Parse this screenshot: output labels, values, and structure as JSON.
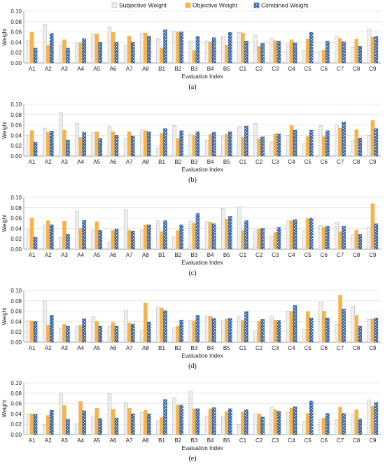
{
  "legend": {
    "subjective": "Subjective Weight",
    "objective": "Objective Weight",
    "combined": "Combined Weight"
  },
  "colors": {
    "subjective": "#c9c9c9",
    "objective": "#f7b24a",
    "combined": "#2f5fa7",
    "grid": "#e3e3e3",
    "axis": "#888888"
  },
  "chart_data": [
    {
      "type": "bar",
      "panel_label": "(a)",
      "categories": [
        "A1",
        "A2",
        "A3",
        "A4",
        "A5",
        "A6",
        "A7",
        "A8",
        "B1",
        "B2",
        "B3",
        "B4",
        "B5",
        "C1",
        "C2",
        "C3",
        "C4",
        "C5",
        "C6",
        "C7",
        "C8",
        "C9"
      ],
      "series": [
        {
          "name": "Subjective Weight",
          "values": [
            0.044,
            0.075,
            0.035,
            0.038,
            0.057,
            0.07,
            0.035,
            0.058,
            0.048,
            0.062,
            0.043,
            0.043,
            0.051,
            0.059,
            0.054,
            0.048,
            0.037,
            0.024,
            0.022,
            0.052,
            0.031,
            0.066
          ]
        },
        {
          "name": "Objective Weight",
          "values": [
            0.059,
            0.034,
            0.045,
            0.039,
            0.056,
            0.059,
            0.052,
            0.058,
            0.029,
            0.06,
            0.024,
            0.041,
            0.035,
            0.058,
            0.032,
            0.043,
            0.045,
            0.046,
            0.025,
            0.047,
            0.046,
            0.05
          ]
        },
        {
          "name": "Combined Weight",
          "values": [
            0.029,
            0.057,
            0.029,
            0.047,
            0.04,
            0.04,
            0.04,
            0.052,
            0.064,
            0.06,
            0.051,
            0.049,
            0.059,
            0.042,
            0.038,
            0.042,
            0.039,
            0.059,
            0.042,
            0.041,
            0.032,
            0.051
          ]
        }
      ],
      "xlabel": "Evaluation Index",
      "ylabel": "Weight",
      "ylim": [
        0,
        0.1
      ],
      "yticks": [
        "0.00",
        "0.02",
        "0.04",
        "0.06",
        "0.08",
        "0.10"
      ],
      "legend_position": "top-center",
      "grid": true
    },
    {
      "type": "bar",
      "panel_label": "(b)",
      "categories": [
        "A1",
        "A2",
        "A3",
        "A4",
        "A5",
        "A6",
        "A7",
        "A8",
        "B1",
        "B2",
        "B3",
        "B4",
        "B5",
        "C1",
        "C2",
        "C3",
        "C4",
        "C5",
        "C6",
        "C7",
        "C8",
        "C9"
      ],
      "series": [
        {
          "name": "Subjective Weight",
          "values": [
            0.041,
            0.054,
            0.084,
            0.063,
            0.045,
            0.057,
            0.034,
            0.051,
            0.016,
            0.059,
            0.043,
            0.031,
            0.039,
            0.057,
            0.063,
            0.027,
            0.04,
            0.024,
            0.059,
            0.06,
            0.03,
            0.04
          ]
        },
        {
          "name": "Objective Weight",
          "values": [
            0.049,
            0.046,
            0.05,
            0.036,
            0.047,
            0.047,
            0.047,
            0.049,
            0.044,
            0.034,
            0.04,
            0.042,
            0.043,
            0.036,
            0.034,
            0.043,
            0.059,
            0.038,
            0.038,
            0.054,
            0.051,
            0.069
          ]
        },
        {
          "name": "Combined Weight",
          "values": [
            0.027,
            0.048,
            0.031,
            0.046,
            0.034,
            0.04,
            0.039,
            0.047,
            0.053,
            0.049,
            0.047,
            0.046,
            0.047,
            0.058,
            0.037,
            0.043,
            0.05,
            0.05,
            0.049,
            0.066,
            0.035,
            0.053
          ]
        }
      ],
      "xlabel": "Evaluation Index",
      "ylabel": "Weight",
      "ylim": [
        0,
        0.1
      ],
      "yticks": [
        "0.00",
        "0.02",
        "0.04",
        "0.06",
        "0.08",
        "0.10"
      ],
      "grid": true
    },
    {
      "type": "bar",
      "panel_label": "(c)",
      "categories": [
        "A1",
        "A2",
        "A3",
        "A4",
        "A5",
        "A6",
        "A7",
        "A8",
        "B1",
        "B2",
        "B3",
        "B4",
        "B5",
        "C1",
        "C2",
        "C3",
        "C4",
        "C5",
        "C6",
        "C7",
        "C8",
        "C9"
      ],
      "series": [
        {
          "name": "Subjective Weight",
          "values": [
            0.037,
            0.047,
            0.023,
            0.074,
            0.036,
            0.014,
            0.076,
            0.036,
            0.055,
            0.024,
            0.055,
            0.053,
            0.079,
            0.082,
            0.037,
            0.025,
            0.055,
            0.036,
            0.046,
            0.052,
            0.029,
            0.043
          ]
        },
        {
          "name": "Objective Weight",
          "values": [
            0.06,
            0.055,
            0.054,
            0.04,
            0.053,
            0.036,
            0.036,
            0.047,
            0.034,
            0.036,
            0.05,
            0.052,
            0.058,
            0.036,
            0.039,
            0.032,
            0.055,
            0.059,
            0.042,
            0.034,
            0.037,
            0.088
          ]
        },
        {
          "name": "Combined Weight",
          "values": [
            0.023,
            0.047,
            0.029,
            0.056,
            0.036,
            0.039,
            0.035,
            0.047,
            0.055,
            0.047,
            0.069,
            0.049,
            0.063,
            0.055,
            0.04,
            0.042,
            0.057,
            0.06,
            0.044,
            0.044,
            0.029,
            0.049
          ]
        }
      ],
      "xlabel": "Evaluation Index",
      "ylabel": "Weight",
      "ylim": [
        0,
        0.1
      ],
      "yticks": [
        "0.00",
        "0.02",
        "0.04",
        "0.06",
        "0.08",
        "0.10"
      ],
      "grid": true
    },
    {
      "type": "bar",
      "panel_label": "(d)",
      "categories": [
        "A1",
        "A2",
        "A3",
        "A4",
        "A5",
        "A6",
        "A7",
        "A8",
        "B1",
        "B2",
        "B3",
        "B4",
        "B5",
        "C1",
        "C2",
        "C3",
        "C4",
        "C5",
        "C6",
        "C7",
        "C8",
        "C9"
      ],
      "series": [
        {
          "name": "Subjective Weight",
          "values": [
            0.042,
            0.08,
            0.027,
            0.03,
            0.049,
            0.03,
            0.062,
            0.024,
            0.068,
            0.028,
            0.043,
            0.051,
            0.042,
            0.05,
            0.022,
            0.05,
            0.059,
            0.025,
            0.078,
            0.035,
            0.07,
            0.044
          ]
        },
        {
          "name": "Objective Weight",
          "values": [
            0.041,
            0.033,
            0.035,
            0.033,
            0.04,
            0.038,
            0.037,
            0.076,
            0.066,
            0.031,
            0.041,
            0.05,
            0.045,
            0.042,
            0.041,
            0.043,
            0.059,
            0.059,
            0.06,
            0.091,
            0.052,
            0.045
          ]
        },
        {
          "name": "Combined Weight",
          "values": [
            0.04,
            0.052,
            0.031,
            0.045,
            0.031,
            0.031,
            0.035,
            0.039,
            0.061,
            0.043,
            0.052,
            0.046,
            0.046,
            0.059,
            0.044,
            0.042,
            0.071,
            0.047,
            0.047,
            0.064,
            0.031,
            0.047
          ]
        }
      ],
      "xlabel": "Evaluation Index",
      "ylabel": "Weight",
      "ylim": [
        0,
        0.1
      ],
      "yticks": [
        "0.00",
        "0.02",
        "0.04",
        "0.06",
        "0.08",
        "0.10"
      ],
      "grid": true
    },
    {
      "type": "bar",
      "panel_label": "(e)",
      "categories": [
        "A1",
        "A2",
        "A3",
        "A4",
        "A5",
        "A6",
        "A7",
        "A8",
        "B1",
        "B2",
        "B3",
        "B4",
        "B5",
        "C1",
        "C2",
        "C3",
        "C4",
        "C5",
        "C6",
        "C7",
        "C8",
        "C9"
      ],
      "series": [
        {
          "name": "Subjective Weight",
          "values": [
            0.04,
            0.019,
            0.08,
            0.021,
            0.035,
            0.079,
            0.062,
            0.043,
            0.027,
            0.071,
            0.084,
            0.036,
            0.036,
            0.02,
            0.04,
            0.053,
            0.043,
            0.025,
            0.03,
            0.029,
            0.04,
            0.067
          ]
        },
        {
          "name": "Objective Weight",
          "values": [
            0.04,
            0.037,
            0.056,
            0.064,
            0.051,
            0.049,
            0.051,
            0.047,
            0.033,
            0.057,
            0.05,
            0.05,
            0.045,
            0.044,
            0.04,
            0.048,
            0.051,
            0.041,
            0.032,
            0.053,
            0.048,
            0.055
          ]
        },
        {
          "name": "Combined Weight",
          "values": [
            0.039,
            0.047,
            0.03,
            0.046,
            0.031,
            0.032,
            0.04,
            0.04,
            0.068,
            0.057,
            0.05,
            0.052,
            0.05,
            0.048,
            0.034,
            0.045,
            0.054,
            0.065,
            0.041,
            0.041,
            0.03,
            0.062
          ]
        }
      ],
      "xlabel": "Evaluation Index",
      "ylabel": "Weight",
      "ylim": [
        0,
        0.1
      ],
      "yticks": [
        "0.00",
        "0.02",
        "0.04",
        "0.06",
        "0.08",
        "0.10"
      ],
      "grid": true
    }
  ]
}
